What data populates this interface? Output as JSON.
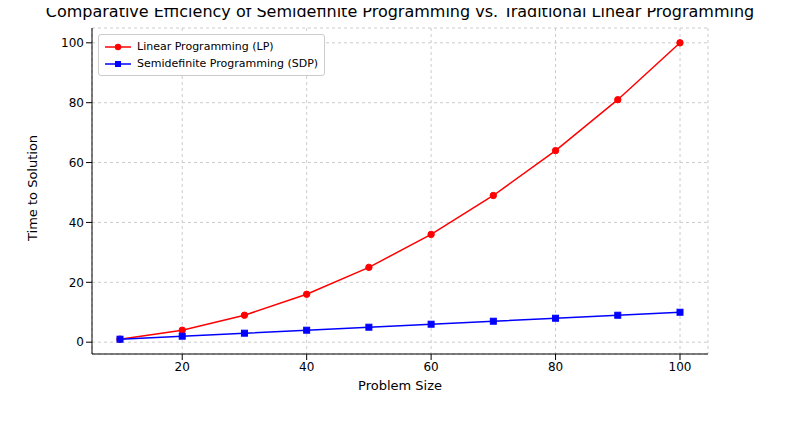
{
  "chart_data": {
    "type": "line",
    "title": "Comparative Efficiency of Semidefinite Programming vs. Traditional Linear Programming",
    "x_label": "Problem Size",
    "y_label": "Time to Solution",
    "x": [
      10,
      20,
      30,
      40,
      50,
      60,
      70,
      80,
      90,
      100
    ],
    "series": [
      {
        "name": "Linear Programming (LP)",
        "color": "#ff0000",
        "marker": "circle",
        "line_style": "solid",
        "values": [
          1,
          4,
          9,
          16,
          25,
          36,
          49,
          64,
          81,
          100
        ]
      },
      {
        "name": "Semidefinite Programming (SDP)",
        "color": "#0000ff",
        "marker": "square",
        "line_style": "solid",
        "values": [
          1,
          2,
          3,
          4,
          5,
          6,
          7,
          8,
          9,
          10
        ]
      }
    ],
    "xlim": [
      5.5,
      104.5
    ],
    "ylim": [
      -3.95,
      104.95
    ],
    "xticks": [
      20,
      40,
      60,
      80,
      100
    ],
    "yticks": [
      0,
      20,
      40,
      60,
      80,
      100
    ],
    "grid": true,
    "legend": "upper left"
  }
}
